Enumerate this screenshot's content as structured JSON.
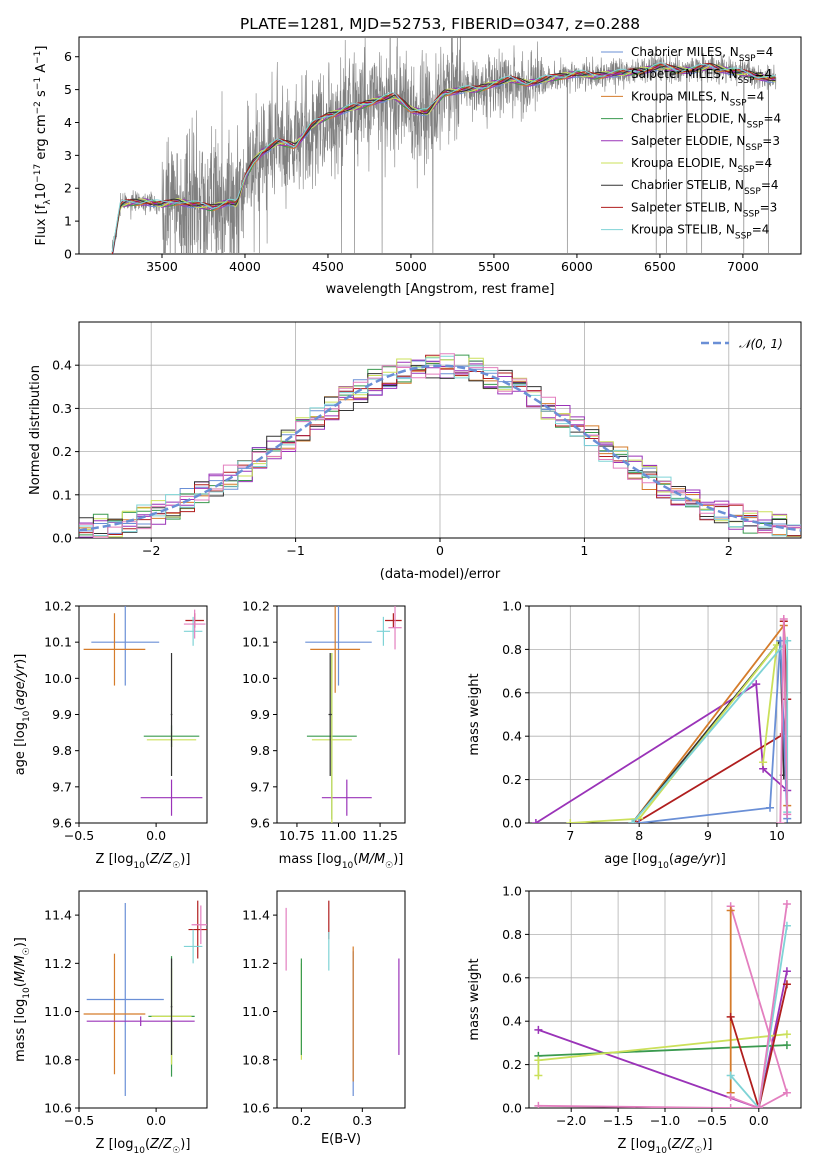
{
  "figure_title": "PLATE=1281, MJD=52753, FIBERID=0347, z=0.288",
  "colors": {
    "Chabrier MILES": "#6a8fd6",
    "Salpeter MILES": "#9a33b8",
    "Kroupa MILES": "#d57c2b",
    "Chabrier ELODIE": "#3a9a4f",
    "Salpeter ELODIE": "#9a33b8",
    "Kroupa ELODIE": "#cbe05a",
    "Chabrier STELIB": "#333333",
    "Salpeter STELIB": "#b01e1e",
    "Kroupa STELIB": "#7fd3d6",
    "pink": "#e37fbf",
    "data": "#808080",
    "grid": "#b0b0b0"
  },
  "chart_data": [
    {
      "id": "spectrum",
      "type": "line",
      "xlabel": "wavelength [Angstrom, rest frame]",
      "ylabel": "Flux [f_λ 10^-17 erg cm^-2 s^-1 A^-1]",
      "xlim": [
        3000,
        7350
      ],
      "ylim": [
        0,
        6.6
      ],
      "xticks": [
        3500,
        4000,
        4500,
        5000,
        5500,
        6000,
        6500,
        7000
      ],
      "yticks": [
        0,
        1,
        2,
        3,
        4,
        5,
        6
      ],
      "grid": false,
      "legend_position": "top-right",
      "legend": [
        "Chabrier MILES, N_SSP=4",
        "Salpeter MILES, N_SSP=4",
        "Kroupa MILES, N_SSP=4",
        "Chabrier ELODIE, N_SSP=4",
        "Salpeter ELODIE, N_SSP=3",
        "Kroupa ELODIE, N_SSP=4",
        "Chabrier STELIB, N_SSP=4",
        "Salpeter STELIB, N_SSP=3",
        "Kroupa STELIB, N_SSP=4"
      ],
      "model_continuum": {
        "x": [
          3200,
          3250,
          3300,
          3400,
          3500,
          3600,
          3700,
          3800,
          3900,
          3950,
          4000,
          4050,
          4100,
          4200,
          4300,
          4400,
          4500,
          4600,
          4700,
          4800,
          4900,
          5000,
          5100,
          5200,
          5300,
          5400,
          5500,
          5600,
          5700,
          5800,
          5900,
          6000,
          6100,
          6200,
          6300,
          6400,
          6500,
          6600,
          6700,
          6800,
          6900,
          7000,
          7100,
          7200
        ],
        "y": [
          0,
          1.5,
          1.55,
          1.6,
          1.5,
          1.6,
          1.5,
          1.4,
          1.6,
          1.5,
          2.3,
          2.8,
          3.1,
          3.4,
          3.3,
          3.9,
          4.2,
          4.4,
          4.5,
          4.7,
          4.8,
          4.4,
          4.3,
          4.9,
          5.0,
          5.0,
          5.2,
          5.3,
          5.2,
          5.3,
          5.4,
          5.5,
          5.4,
          5.5,
          5.5,
          5.6,
          5.7,
          5.6,
          5.6,
          5.7,
          5.6,
          5.5,
          5.4,
          5.3
        ]
      }
    },
    {
      "id": "residuals",
      "type": "line",
      "xlabel": "(data-model)/error",
      "ylabel": "Normed distribution",
      "xlim": [
        -2.5,
        2.5
      ],
      "ylim": [
        0,
        0.5
      ],
      "xticks": [
        -2,
        -1,
        0,
        1,
        2
      ],
      "yticks": [
        0.0,
        0.1,
        0.2,
        0.3,
        0.4
      ],
      "grid": true,
      "legend_position": "top-right",
      "legend": [
        "𝒩(0, 1)"
      ],
      "reference_curve": "standard normal pdf"
    },
    {
      "id": "age_vs_Z",
      "type": "scatter",
      "xlabel": "Z [log10(Z/Z☉)]",
      "ylabel": "age  [log10(age/yr)]",
      "xlim": [
        -0.5,
        0.33
      ],
      "ylim": [
        9.6,
        10.2
      ],
      "xticks": [
        -0.5,
        0.0
      ],
      "yticks": [
        9.6,
        9.7,
        9.8,
        9.9,
        10.0,
        10.1,
        10.2
      ],
      "grid": false
    },
    {
      "id": "age_vs_mass",
      "type": "scatter",
      "xlabel": "mass [log10(M/M☉)]",
      "ylabel": "",
      "xlim": [
        10.63,
        11.4
      ],
      "ylim": [
        9.6,
        10.2
      ],
      "xticks": [
        10.75,
        11.0,
        11.25
      ],
      "yticks": [
        9.6,
        9.7,
        9.8,
        9.9,
        10.0,
        10.1,
        10.2
      ],
      "grid": false
    },
    {
      "id": "mass_weight_vs_age",
      "type": "line",
      "xlabel": "age  [log10(age/yr)]",
      "ylabel": "mass weight",
      "xlim": [
        6.4,
        10.35
      ],
      "ylim": [
        0,
        1
      ],
      "xticks": [
        7,
        8,
        9,
        10
      ],
      "yticks": [
        0.0,
        0.2,
        0.4,
        0.6,
        0.8,
        1.0
      ],
      "grid": true
    },
    {
      "id": "mass_vs_Z",
      "type": "scatter",
      "xlabel": "Z [log10(Z/Z☉)]",
      "ylabel": "mass [log10(M/M☉)]",
      "xlim": [
        -0.5,
        0.33
      ],
      "ylim": [
        10.6,
        11.5
      ],
      "xticks": [
        -0.5,
        0.0
      ],
      "yticks": [
        10.6,
        10.8,
        11.0,
        11.2,
        11.4
      ],
      "grid": false
    },
    {
      "id": "mass_vs_ebv",
      "type": "scatter",
      "xlabel": "E(B-V)",
      "ylabel": "",
      "xlim": [
        0.16,
        0.37
      ],
      "ylim": [
        10.6,
        11.5
      ],
      "xticks": [
        0.2,
        0.3
      ],
      "yticks": [
        10.6,
        10.8,
        11.0,
        11.2,
        11.4
      ],
      "grid": false
    },
    {
      "id": "mass_weight_vs_Z",
      "type": "line",
      "xlabel": "Z [log10(Z/Z☉)]",
      "ylabel": "mass weight",
      "xlim": [
        -2.45,
        0.45
      ],
      "ylim": [
        0,
        1
      ],
      "xticks": [
        -2.0,
        -1.5,
        -1.0,
        -0.5,
        0.0
      ],
      "yticks": [
        0.0,
        0.2,
        0.4,
        0.6,
        0.8,
        1.0
      ],
      "grid": true
    }
  ]
}
